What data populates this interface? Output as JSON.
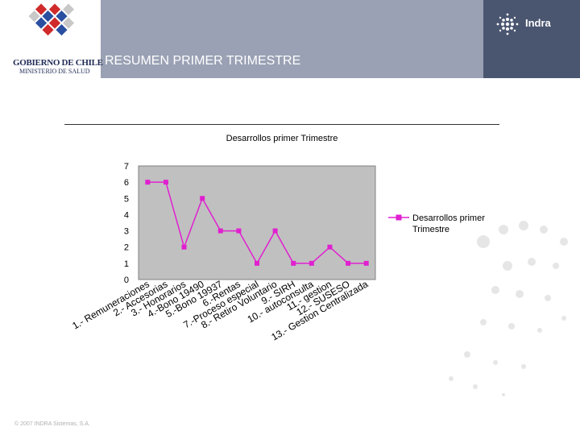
{
  "header": {
    "gov_title": "GOBIERNO DE CHILE",
    "gov_subtitle": "MINISTERIO DE SALUD",
    "slide_title": "RESUMEN PRIMER TRIMESTRE",
    "brand_name": "Indra"
  },
  "footer": {
    "copyright": "© 2007 INDRA Sistemas, S.A."
  },
  "colors": {
    "header_bg": "#9aa1b4",
    "brand_panel": "#4a5570",
    "plot_bg": "#c0c0c0",
    "series": "#e020d0"
  },
  "chart_data": {
    "type": "line",
    "title": "Desarrollos primer Trimestre",
    "xlabel": "",
    "ylabel": "",
    "ylim": [
      0,
      7
    ],
    "yticks": [
      "0",
      "1",
      "2",
      "3",
      "4",
      "5",
      "6",
      "7"
    ],
    "grid": false,
    "legend": "right",
    "categories": [
      "1.- Remuneraciones",
      "2.- Accesorias",
      "3.- Honorarios",
      "4.-Bono 19490",
      "5.-Bono 19937",
      "6.-Rentas",
      "7.-Proceso especial",
      "8.- Retiro Voluntario",
      "9.- SIRH",
      "10.- autoconsulta",
      "11.- gestion",
      "12.- SUSESO",
      "13.- Gestion Centralizada"
    ],
    "series": [
      {
        "name": "Desarrollos primer Trimestre",
        "values": [
          6,
          6,
          2,
          5,
          3,
          3,
          1,
          3,
          1,
          1,
          2,
          1,
          1
        ]
      }
    ]
  }
}
